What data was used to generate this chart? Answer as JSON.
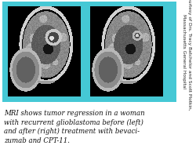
{
  "background_color": "#ffffff",
  "panel_bg_color": "#45c8d5",
  "caption_text": "MRI shows tumor regression in a woman\nwith recurrent glioblastoma before (left)\nand after (right) treatment with bevaci-\nzumab and CPT-11.",
  "caption_fontsize": 6.2,
  "courtesy_text": "Courtesy of Drs. Tracy Batchelor and Scott Plotkin,\nMassachusetts General Hospital",
  "courtesy_fontsize": 4.2,
  "fig_width": 2.51,
  "fig_height": 2.04,
  "fig_dpi": 100
}
